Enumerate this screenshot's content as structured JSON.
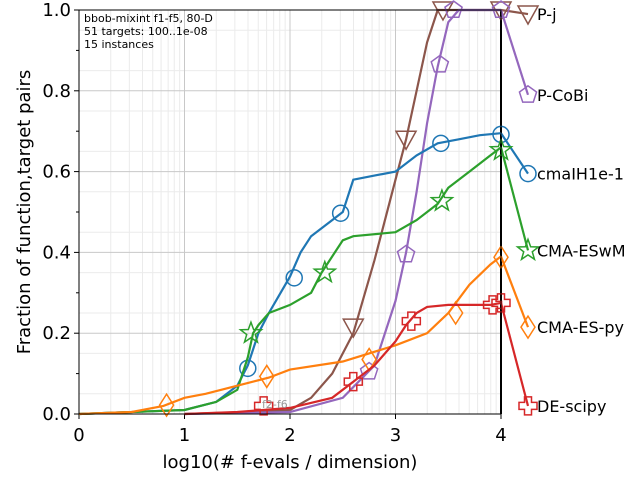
{
  "chart_data": {
    "type": "line",
    "annotation_lines": [
      "bbob-mixint f1-f5, 80-D",
      "51 targets: 100..1e-08",
      "15 instances"
    ],
    "xlabel": "log10(# f-evals / dimension)",
    "ylabel": "Fraction of function,target pairs",
    "xlim": [
      0,
      4.0
    ],
    "ylim": [
      0,
      1.0
    ],
    "x_ticks": [
      "0",
      "1",
      "2",
      "3",
      "4"
    ],
    "y_ticks": [
      "0.0",
      "0.2",
      "0.4",
      "0.6",
      "0.8",
      "1.0"
    ],
    "grid": true,
    "legend_position": "right (labels at curve ends)",
    "faint_text": "f2-f6",
    "series": [
      {
        "name": "P-j",
        "color": "#8c564b",
        "marker": "triangle-down",
        "label_y": 0.99,
        "x": [
          1.0,
          1.6,
          2.0,
          2.2,
          2.4,
          2.6,
          2.8,
          3.0,
          3.1,
          3.2,
          3.3,
          3.4,
          3.5,
          4.0
        ],
        "y": [
          0.0,
          0.005,
          0.01,
          0.04,
          0.1,
          0.2,
          0.38,
          0.58,
          0.68,
          0.8,
          0.92,
          1.0,
          1.0,
          1.0
        ],
        "markers": [
          [
            2.6,
            0.215
          ],
          [
            3.1,
            0.68
          ],
          [
            3.45,
            1.0
          ],
          [
            4.0,
            1.0
          ]
        ]
      },
      {
        "name": "P-CoBi",
        "color": "#9467bd",
        "marker": "pentagon",
        "label_y": 0.79,
        "x": [
          1.0,
          2.0,
          2.5,
          2.8,
          3.0,
          3.1,
          3.2,
          3.3,
          3.4,
          3.5,
          3.6,
          4.0
        ],
        "y": [
          0.0,
          0.005,
          0.04,
          0.12,
          0.28,
          0.4,
          0.55,
          0.72,
          0.86,
          0.97,
          1.0,
          1.0
        ],
        "markers": [
          [
            2.75,
            0.105
          ],
          [
            3.1,
            0.395
          ],
          [
            3.42,
            0.865
          ],
          [
            3.55,
            1.0
          ],
          [
            4.0,
            1.0
          ]
        ]
      },
      {
        "name": "cmaIH1e-1",
        "color": "#1f77b4",
        "marker": "circle",
        "label_y": 0.595,
        "x": [
          0.0,
          1.0,
          1.3,
          1.5,
          1.6,
          1.7,
          1.8,
          2.0,
          2.1,
          2.2,
          2.4,
          2.5,
          2.6,
          2.8,
          3.0,
          3.2,
          3.4,
          3.6,
          3.8,
          4.0
        ],
        "y": [
          0.0,
          0.01,
          0.03,
          0.07,
          0.12,
          0.2,
          0.25,
          0.34,
          0.4,
          0.44,
          0.48,
          0.5,
          0.58,
          0.59,
          0.6,
          0.64,
          0.67,
          0.68,
          0.69,
          0.695
        ],
        "markers": [
          [
            1.6,
            0.113
          ],
          [
            2.04,
            0.337
          ],
          [
            2.48,
            0.497
          ],
          [
            3.43,
            0.67
          ],
          [
            4.0,
            0.692
          ]
        ]
      },
      {
        "name": "CMA-ESwM",
        "color": "#2ca02c",
        "marker": "star",
        "label_y": 0.405,
        "x": [
          0.0,
          1.0,
          1.3,
          1.5,
          1.6,
          1.65,
          1.7,
          1.8,
          2.0,
          2.2,
          2.3,
          2.5,
          2.6,
          3.0,
          3.2,
          3.4,
          3.5,
          3.7,
          3.9,
          4.0
        ],
        "y": [
          0.0,
          0.01,
          0.03,
          0.06,
          0.14,
          0.2,
          0.22,
          0.25,
          0.27,
          0.3,
          0.35,
          0.43,
          0.44,
          0.45,
          0.48,
          0.52,
          0.56,
          0.6,
          0.64,
          0.66
        ],
        "markers": [
          [
            1.63,
            0.2
          ],
          [
            2.33,
            0.35
          ],
          [
            3.44,
            0.527
          ],
          [
            4.0,
            0.653
          ]
        ]
      },
      {
        "name": "CMA-ES-py",
        "color": "#ff7f0e",
        "marker": "diamond",
        "label_y": 0.215,
        "x": [
          0.0,
          0.5,
          0.8,
          1.0,
          1.2,
          1.5,
          1.8,
          2.0,
          2.5,
          3.0,
          3.3,
          3.5,
          3.7,
          3.9,
          4.0
        ],
        "y": [
          0.0,
          0.005,
          0.02,
          0.04,
          0.05,
          0.07,
          0.09,
          0.11,
          0.13,
          0.17,
          0.2,
          0.25,
          0.32,
          0.37,
          0.39
        ],
        "markers": [
          [
            0.83,
            0.022
          ],
          [
            1.78,
            0.093
          ],
          [
            2.75,
            0.135
          ],
          [
            3.57,
            0.25
          ],
          [
            4.0,
            0.388
          ]
        ]
      },
      {
        "name": "DE-scipy",
        "color": "#d62728",
        "marker": "plus",
        "label_y": 0.02,
        "x": [
          1.0,
          1.5,
          2.0,
          2.4,
          2.6,
          2.8,
          3.0,
          3.1,
          3.2,
          3.3,
          3.5,
          3.7,
          3.9,
          4.0
        ],
        "y": [
          0.0,
          0.005,
          0.015,
          0.04,
          0.08,
          0.12,
          0.18,
          0.22,
          0.25,
          0.265,
          0.27,
          0.27,
          0.27,
          0.275
        ],
        "markers": [
          [
            1.75,
            0.02
          ],
          [
            2.6,
            0.08
          ],
          [
            3.15,
            0.23
          ],
          [
            3.92,
            0.27
          ],
          [
            4.0,
            0.275
          ]
        ]
      }
    ]
  }
}
